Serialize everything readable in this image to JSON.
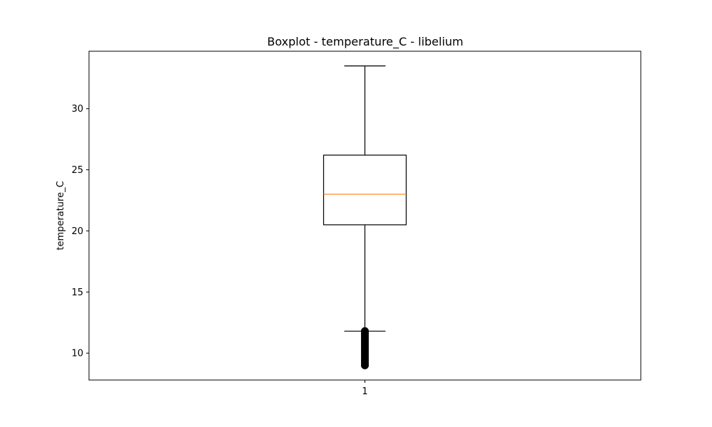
{
  "chart_data": {
    "type": "boxplot",
    "title": "Boxplot - temperature_C - libelium",
    "xlabel": "",
    "ylabel": "temperature_C",
    "categories": [
      "1"
    ],
    "ylim": [
      7.8,
      34.7
    ],
    "yticks": [
      10,
      15,
      20,
      25,
      30
    ],
    "grid": false,
    "colors": {
      "box": "#000000",
      "median": "#ff7f0e",
      "outlier": "#000000"
    },
    "boxes": [
      {
        "label": "1",
        "whisker_low": 11.8,
        "q1": 20.5,
        "median": 23.0,
        "q3": 26.2,
        "whisker_high": 33.5,
        "outliers": [
          9.0,
          9.2,
          9.4,
          9.6,
          9.8,
          10.0,
          10.2,
          10.4,
          10.6,
          10.8,
          11.0,
          11.2,
          11.4,
          11.6,
          11.8
        ]
      }
    ]
  }
}
